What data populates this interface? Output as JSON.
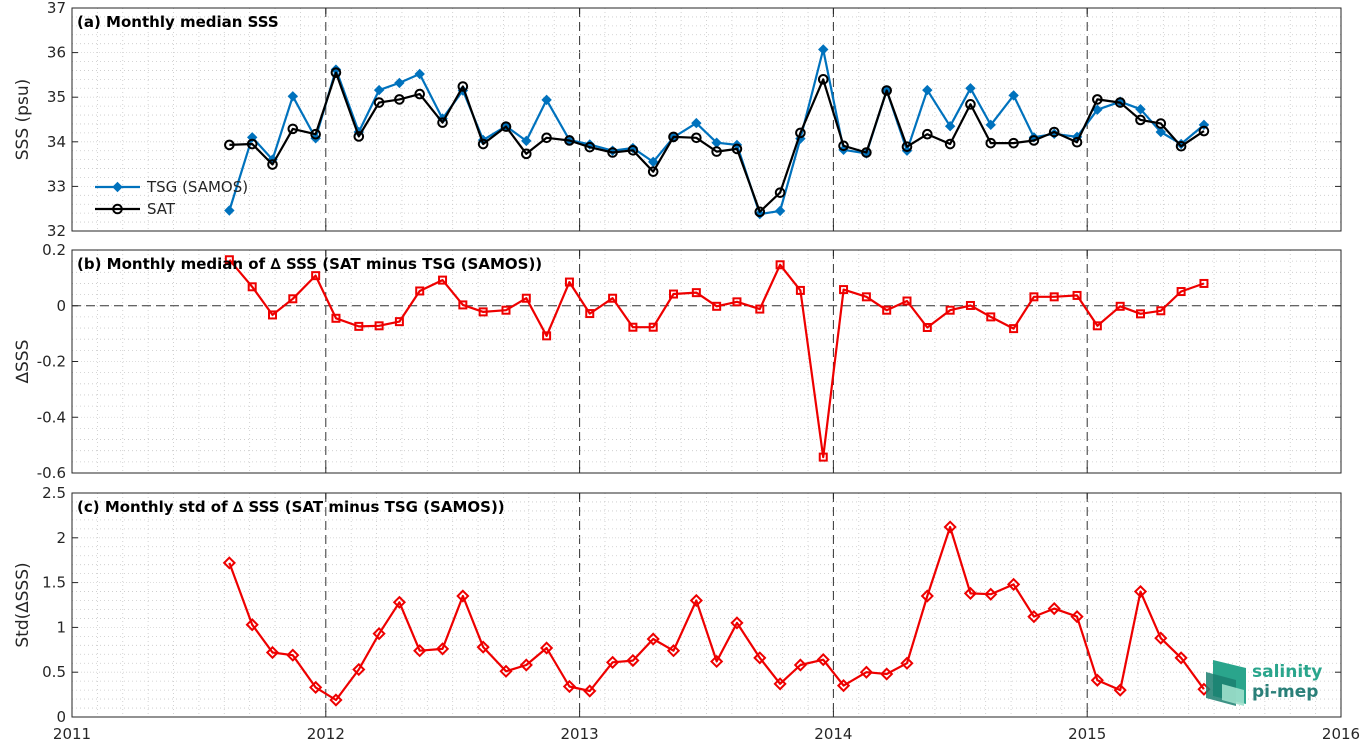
{
  "colors": {
    "tsg": "#0072bd",
    "sat": "#000000",
    "diff": "#ee0000",
    "axis": "#262626",
    "logo": "#2aa58c"
  },
  "logo": {
    "line1": "salinity",
    "line2": "pi-mep"
  },
  "chart_data": [
    {
      "type": "line",
      "title": "(a) Monthly median SSS",
      "ylabel": "SSS (psu)",
      "xlim": [
        2011,
        2016
      ],
      "ylim": [
        32,
        37
      ],
      "yticks": [
        32,
        33,
        34,
        35,
        36,
        37
      ],
      "xticks": [
        2011,
        2012,
        2013,
        2014,
        2015,
        2016
      ],
      "grid": true,
      "legend": "bottom-left",
      "x": [
        2011.62,
        2011.71,
        2011.79,
        2011.87,
        2011.96,
        2012.04,
        2012.13,
        2012.21,
        2012.29,
        2012.37,
        2012.46,
        2012.54,
        2012.62,
        2012.71,
        2012.79,
        2012.87,
        2012.96,
        2013.04,
        2013.13,
        2013.21,
        2013.29,
        2013.37,
        2013.46,
        2013.54,
        2013.62,
        2013.71,
        2013.79,
        2013.87,
        2013.96,
        2014.04,
        2014.13,
        2014.21,
        2014.29,
        2014.37,
        2014.46,
        2014.54,
        2014.62,
        2014.71,
        2014.79,
        2014.87,
        2014.96,
        2015.04,
        2015.13,
        2015.21,
        2015.29,
        2015.37,
        2015.46
      ],
      "series": [
        {
          "name": "TSG (SAMOS)",
          "marker": "diamond",
          "values": [
            32.46,
            34.1,
            33.6,
            35.02,
            34.08,
            35.62,
            34.22,
            35.16,
            35.32,
            35.52,
            34.52,
            35.15,
            34.04,
            34.35,
            34.02,
            34.94,
            34.04,
            33.94,
            33.8,
            33.86,
            33.55,
            34.1,
            34.42,
            33.98,
            33.93,
            32.38,
            32.45,
            34.07,
            36.07,
            33.82,
            33.74,
            35.15,
            33.8,
            35.16,
            34.35,
            35.2,
            34.38,
            35.04,
            34.1,
            34.18,
            34.11,
            34.72,
            34.9,
            34.73,
            34.22,
            33.95,
            34.38
          ]
        },
        {
          "name": "SAT",
          "marker": "circle",
          "values": [
            33.93,
            33.95,
            33.49,
            34.29,
            34.17,
            35.55,
            34.12,
            34.88,
            34.95,
            35.07,
            34.43,
            35.24,
            33.95,
            34.34,
            33.73,
            34.09,
            34.03,
            33.88,
            33.76,
            33.81,
            33.33,
            34.11,
            34.09,
            33.78,
            33.84,
            32.43,
            32.86,
            34.2,
            35.4,
            33.91,
            33.76,
            35.15,
            33.89,
            34.17,
            33.95,
            34.84,
            33.97,
            33.97,
            34.03,
            34.22,
            33.99,
            34.95,
            34.88,
            34.49,
            34.41,
            33.9,
            34.24
          ]
        }
      ]
    },
    {
      "type": "line",
      "title": "(b) Monthly median of ∆ SSS (SAT minus TSG (SAMOS))",
      "ylabel": "∆SSS",
      "xlim": [
        2011,
        2016
      ],
      "ylim": [
        -0.6,
        0.2
      ],
      "yticks": [
        -0.6,
        -0.4,
        -0.2,
        0,
        0.2
      ],
      "ytick_labels": [
        "-0.6",
        "-0.4",
        "-0.2",
        "0",
        "0.2"
      ],
      "xticks": [
        2011,
        2012,
        2013,
        2014,
        2015,
        2016
      ],
      "grid": true,
      "zero_line": true,
      "x": [
        2011.62,
        2011.71,
        2011.79,
        2011.87,
        2011.96,
        2012.04,
        2012.13,
        2012.21,
        2012.29,
        2012.37,
        2012.46,
        2012.54,
        2012.62,
        2012.71,
        2012.79,
        2012.87,
        2012.96,
        2013.04,
        2013.13,
        2013.21,
        2013.29,
        2013.37,
        2013.46,
        2013.54,
        2013.62,
        2013.71,
        2013.79,
        2013.87,
        2013.96,
        2014.04,
        2014.13,
        2014.21,
        2014.29,
        2014.37,
        2014.46,
        2014.54,
        2014.62,
        2014.71,
        2014.79,
        2014.87,
        2014.96,
        2015.04,
        2015.13,
        2015.21,
        2015.29,
        2015.37,
        2015.46
      ],
      "series": [
        {
          "marker": "square",
          "values": [
            0.165,
            0.068,
            -0.033,
            0.025,
            0.108,
            -0.045,
            -0.074,
            -0.072,
            -0.057,
            0.053,
            0.092,
            0.003,
            -0.022,
            -0.016,
            0.027,
            -0.108,
            0.085,
            -0.028,
            0.027,
            -0.077,
            -0.077,
            0.042,
            0.047,
            -0.002,
            0.014,
            -0.012,
            0.147,
            0.055,
            -0.543,
            0.058,
            0.032,
            -0.016,
            0.017,
            -0.078,
            -0.016,
            0.001,
            -0.04,
            -0.082,
            0.032,
            0.032,
            0.037,
            -0.072,
            -0.002,
            -0.029,
            -0.018,
            0.051,
            0.08
          ]
        }
      ]
    },
    {
      "type": "line",
      "title": "(c) Monthly std of ∆ SSS (SAT minus TSG (SAMOS))",
      "ylabel": "Std(∆SSS)",
      "xlim": [
        2011,
        2016
      ],
      "ylim": [
        0,
        2.5
      ],
      "yticks": [
        0,
        0.5,
        1,
        1.5,
        2,
        2.5
      ],
      "ytick_labels": [
        "0",
        "0.5",
        "1",
        "1.5",
        "2",
        "2.5"
      ],
      "xticks": [
        2011,
        2012,
        2013,
        2014,
        2015,
        2016
      ],
      "grid": true,
      "x": [
        2011.62,
        2011.71,
        2011.79,
        2011.87,
        2011.96,
        2012.04,
        2012.13,
        2012.21,
        2012.29,
        2012.37,
        2012.46,
        2012.54,
        2012.62,
        2012.71,
        2012.79,
        2012.87,
        2012.96,
        2013.04,
        2013.13,
        2013.21,
        2013.29,
        2013.37,
        2013.46,
        2013.54,
        2013.62,
        2013.71,
        2013.79,
        2013.87,
        2013.96,
        2014.04,
        2014.13,
        2014.21,
        2014.29,
        2014.37,
        2014.46,
        2014.54,
        2014.62,
        2014.71,
        2014.79,
        2014.87,
        2014.96,
        2015.04,
        2015.13,
        2015.21,
        2015.29,
        2015.37,
        2015.46
      ],
      "series": [
        {
          "marker": "diamond",
          "values": [
            1.72,
            1.03,
            0.72,
            0.69,
            0.33,
            0.19,
            0.53,
            0.93,
            1.28,
            0.74,
            0.76,
            1.35,
            0.78,
            0.51,
            0.58,
            0.77,
            0.34,
            0.29,
            0.61,
            0.63,
            0.87,
            0.74,
            1.3,
            0.62,
            1.05,
            0.66,
            0.37,
            0.58,
            0.64,
            0.35,
            0.5,
            0.48,
            0.6,
            1.35,
            2.12,
            1.38,
            1.37,
            1.48,
            1.12,
            1.21,
            1.12,
            0.41,
            0.3,
            1.4,
            0.88,
            0.66,
            0.31
          ]
        }
      ]
    }
  ]
}
